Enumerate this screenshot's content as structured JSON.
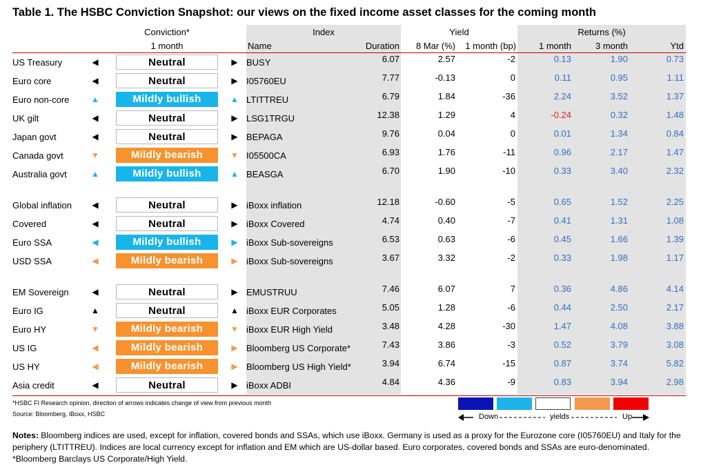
{
  "title": "Table 1. The HSBC Conviction Snapshot: our views on the fixed income asset classes for the coming month",
  "headers": {
    "conviction": "Conviction*",
    "conviction_sub": "1 month",
    "index": "Index",
    "yield": "Yield",
    "returns": "Returns (%)",
    "name": "Name",
    "duration": "Duration",
    "yield_8mar": "8 Mar (%)",
    "yield_1m": "1 month (bp)",
    "ret_1m": "1 month",
    "ret_3m": "3 month",
    "ret_ytd": "Ytd"
  },
  "rows": [
    {
      "cls": "US Treasury",
      "arrow": "left",
      "color": "black",
      "view": "Neutral",
      "style": "neutral",
      "name": "BUSY",
      "dur": "6.07",
      "y8": "2.57",
      "y1": "-2",
      "r1": "0.13",
      "r3": "1.90",
      "ytd": "0.73"
    },
    {
      "cls": "Euro core",
      "arrow": "left",
      "color": "black",
      "view": "Neutral",
      "style": "neutral",
      "name": "I05760EU",
      "dur": "7.77",
      "y8": "-0.13",
      "y1": "0",
      "r1": "0.11",
      "r3": "0.95",
      "ytd": "1.11"
    },
    {
      "cls": "Euro non-core",
      "arrow": "up",
      "color": "blue",
      "view": "Mildly bullish",
      "style": "bull",
      "name": "LTITTREU",
      "dur": "6.79",
      "y8": "1.84",
      "y1": "-36",
      "r1": "2.24",
      "r3": "3.52",
      "ytd": "1.37"
    },
    {
      "cls": "UK gilt",
      "arrow": "left",
      "color": "black",
      "view": "Neutral",
      "style": "neutral",
      "name": "LSG1TRGU",
      "dur": "12.38",
      "y8": "1.29",
      "y1": "4",
      "r1": "-0.24",
      "r3": "0.32",
      "ytd": "1.48"
    },
    {
      "cls": "Japan govt",
      "arrow": "left",
      "color": "black",
      "view": "Neutral",
      "style": "neutral",
      "name": "BEPAGA",
      "dur": "9.76",
      "y8": "0.04",
      "y1": "0",
      "r1": "0.01",
      "r3": "1.34",
      "ytd": "0.84"
    },
    {
      "cls": "Canada govt",
      "arrow": "down",
      "color": "orange",
      "view": "Mildly bearish",
      "style": "bear",
      "name": "I05500CA",
      "dur": "6.93",
      "y8": "1.76",
      "y1": "-11",
      "r1": "0.96",
      "r3": "2.17",
      "ytd": "1.47"
    },
    {
      "cls": "Australia govt",
      "arrow": "up",
      "color": "blue",
      "view": "Mildly bullish",
      "style": "bull",
      "name": "BEASGA",
      "dur": "6.70",
      "y8": "1.90",
      "y1": "-10",
      "r1": "0.33",
      "r3": "3.40",
      "ytd": "2.32"
    },
    {
      "cls": "Global inflation",
      "arrow": "left",
      "color": "black",
      "view": "Neutral",
      "style": "neutral",
      "name": "iBoxx inflation",
      "dur": "12.18",
      "y8": "-0.60",
      "y1": "-5",
      "r1": "0.65",
      "r3": "1.52",
      "ytd": "2.25"
    },
    {
      "cls": "Covered",
      "arrow": "left",
      "color": "black",
      "view": "Neutral",
      "style": "neutral",
      "name": "iBoxx Covered",
      "dur": "4.74",
      "y8": "0.40",
      "y1": "-7",
      "r1": "0.41",
      "r3": "1.31",
      "ytd": "1.08"
    },
    {
      "cls": "Euro SSA",
      "arrow": "left",
      "color": "blue",
      "view": "Mildly bullish",
      "style": "bull",
      "name": "iBoxx Sub-sovereigns",
      "dur": "6.53",
      "y8": "0.63",
      "y1": "-6",
      "r1": "0.45",
      "r3": "1.66",
      "ytd": "1.39"
    },
    {
      "cls": "USD SSA",
      "arrow": "left",
      "color": "orange",
      "view": "Mildly bearish",
      "style": "bear",
      "name": "iBoxx Sub-sovereigns",
      "dur": "3.67",
      "y8": "3.32",
      "y1": "-2",
      "r1": "0.33",
      "r3": "1.98",
      "ytd": "1.17"
    },
    {
      "cls": "EM Sovereign",
      "arrow": "left",
      "color": "black",
      "view": "Neutral",
      "style": "neutral",
      "name": "EMUSTRUU",
      "dur": "7.46",
      "y8": "6.07",
      "y1": "7",
      "r1": "0.36",
      "r3": "4.86",
      "ytd": "4.14"
    },
    {
      "cls": "Euro IG",
      "arrow": "up",
      "color": "black",
      "view": "Neutral",
      "style": "neutral",
      "name": "iBoxx EUR Corporates",
      "dur": "5.05",
      "y8": "1.28",
      "y1": "-6",
      "r1": "0.44",
      "r3": "2.50",
      "ytd": "2.17"
    },
    {
      "cls": "Euro HY",
      "arrow": "down",
      "color": "orange",
      "view": "Mildly bearish",
      "style": "bear",
      "name": "iBoxx EUR High Yield",
      "dur": "3.48",
      "y8": "4.28",
      "y1": "-30",
      "r1": "1.47",
      "r3": "4.08",
      "ytd": "3.88"
    },
    {
      "cls": "US IG",
      "arrow": "left",
      "color": "orange",
      "view": "Mildly bearish",
      "style": "bear",
      "name": "Bloomberg US Corporate*",
      "dur": "7.43",
      "y8": "3.86",
      "y1": "-3",
      "r1": "0.52",
      "r3": "3.79",
      "ytd": "3.08"
    },
    {
      "cls": "US HY",
      "arrow": "left",
      "color": "orange",
      "view": "Mildly bearish",
      "style": "bear",
      "name": "Bloomberg US High Yield*",
      "dur": "3.94",
      "y8": "6.74",
      "y1": "-15",
      "r1": "0.87",
      "r3": "3.74",
      "ytd": "5.82"
    },
    {
      "cls": "Asia credit",
      "arrow": "left",
      "color": "black",
      "view": "Neutral",
      "style": "neutral",
      "name": "iBoxx ADBI",
      "dur": "4.84",
      "y8": "4.36",
      "y1": "-9",
      "r1": "0.83",
      "r3": "3.94",
      "ytd": "2.98"
    }
  ],
  "footnote1": "*HSBC FI Research opinion, direction of arrows indicates change of view from previous month",
  "footnote2": "Source: Bloomberg, iBoxx, HSBC",
  "legend": {
    "colors": [
      "#0a14b4",
      "#1fb2e8",
      "#ffffff",
      "#f39a4e",
      "#f00000"
    ],
    "down": "Down",
    "yields": "yields",
    "up": "Up"
  },
  "notes_label": "Notes:",
  "notes_text": " Bloomberg indices are used, except for inflation, covered bonds and SSAs, which use iBoxx. Germany is used as a proxy for the Eurozone core (I05760EU) and Italy for the periphery (LTITTREU). Indices are local currency except for inflation and EM which are US-dollar based. Euro corporates, covered bonds and SSAs are euro-denominated.",
  "notes_footer": "*Bloomberg Barclays US Corporate/High Yield."
}
